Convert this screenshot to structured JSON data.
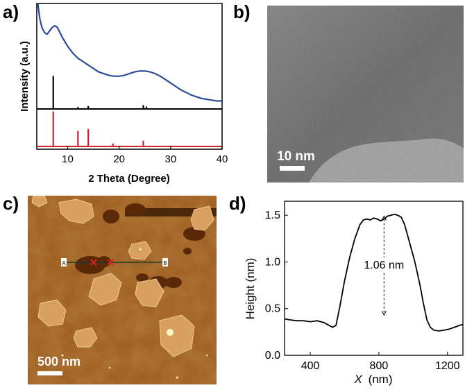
{
  "panels": {
    "a": "a)",
    "b": "b)",
    "c": "c)",
    "d": "d)"
  },
  "colors": {
    "xrd_experimental": "#2b4c9b",
    "xrd_simulated": "#000000",
    "xrd_reference": "#d0202e",
    "tem_background": "#6b6b6b",
    "afm_background": "#9a5a1e",
    "afm_island": "#d8a060"
  },
  "chart_data": [
    {
      "type": "line",
      "panel": "a",
      "xlabel": "2 Theta (Degree)",
      "ylabel": "Intensity (a.u.)",
      "xlim": [
        4,
        40
      ],
      "xticks": [
        10,
        20,
        30,
        40
      ],
      "grid": false,
      "series": [
        {
          "color": "#2b4c9b",
          "x": [
            4.2,
            4.6,
            5.0,
            5.5,
            6.0,
            6.5,
            7.0,
            7.5,
            8.0,
            8.5,
            9.0,
            10,
            11,
            12,
            13,
            14,
            15,
            16,
            17,
            18,
            19,
            20,
            21,
            22,
            23,
            24,
            25,
            26,
            27,
            28,
            29,
            30,
            31,
            32,
            33,
            34,
            35,
            36,
            37,
            38,
            39,
            40
          ],
          "y": [
            1.0,
            0.91,
            0.86,
            0.83,
            0.82,
            0.84,
            0.86,
            0.87,
            0.86,
            0.83,
            0.8,
            0.75,
            0.71,
            0.68,
            0.66,
            0.64,
            0.62,
            0.6,
            0.59,
            0.58,
            0.575,
            0.575,
            0.58,
            0.59,
            0.6,
            0.605,
            0.605,
            0.6,
            0.59,
            0.575,
            0.555,
            0.535,
            0.515,
            0.495,
            0.48,
            0.465,
            0.455,
            0.445,
            0.44,
            0.435,
            0.43,
            0.43
          ]
        }
      ],
      "sticks": [
        {
          "color": "#000000",
          "peaks_x": [
            7.2,
            12.0,
            14.0,
            24.7,
            25.3
          ],
          "peaks_h": [
            0.34,
            0.02,
            0.03,
            0.04,
            0.025
          ]
        },
        {
          "color": "#d0202e",
          "peaks_x": [
            7.2,
            12.0,
            14.0,
            18.8,
            24.7
          ],
          "peaks_h": [
            0.36,
            0.16,
            0.18,
            0.03,
            0.06
          ]
        }
      ]
    },
    {
      "type": "line",
      "panel": "d",
      "xlabel_var": "X",
      "xlabel_unit": "(nm)",
      "ylabel": "Height (nm)",
      "xlim": [
        250,
        1290
      ],
      "ylim": [
        0.0,
        1.65
      ],
      "xticks": [
        400,
        800,
        1200
      ],
      "yticks": [
        0.0,
        0.5,
        1.0,
        1.5
      ],
      "grid": false,
      "annotation": "1.06 nm",
      "annotation_span": [
        0.43,
        1.49
      ],
      "annotation_x": 830,
      "series": [
        {
          "color": "#000000",
          "x": [
            250,
            280,
            320,
            360,
            400,
            440,
            480,
            510,
            530,
            550,
            570,
            600,
            630,
            660,
            690,
            710,
            730,
            750,
            770,
            790,
            810,
            830,
            850,
            870,
            890,
            910,
            930,
            950,
            980,
            1010,
            1040,
            1060,
            1080,
            1100,
            1120,
            1150,
            1180,
            1210,
            1240,
            1270,
            1290
          ],
          "y": [
            0.39,
            0.38,
            0.37,
            0.37,
            0.36,
            0.37,
            0.35,
            0.32,
            0.3,
            0.32,
            0.5,
            0.8,
            1.05,
            1.25,
            1.4,
            1.45,
            1.46,
            1.45,
            1.47,
            1.46,
            1.44,
            1.46,
            1.49,
            1.5,
            1.51,
            1.5,
            1.48,
            1.4,
            1.2,
            1.0,
            0.75,
            0.55,
            0.38,
            0.3,
            0.27,
            0.26,
            0.27,
            0.28,
            0.3,
            0.32,
            0.33
          ]
        }
      ]
    }
  ],
  "tem": {
    "scale_label": "10 nm"
  },
  "afm": {
    "scale_label": "500 nm",
    "marker_a": "A",
    "marker_b": "B"
  }
}
